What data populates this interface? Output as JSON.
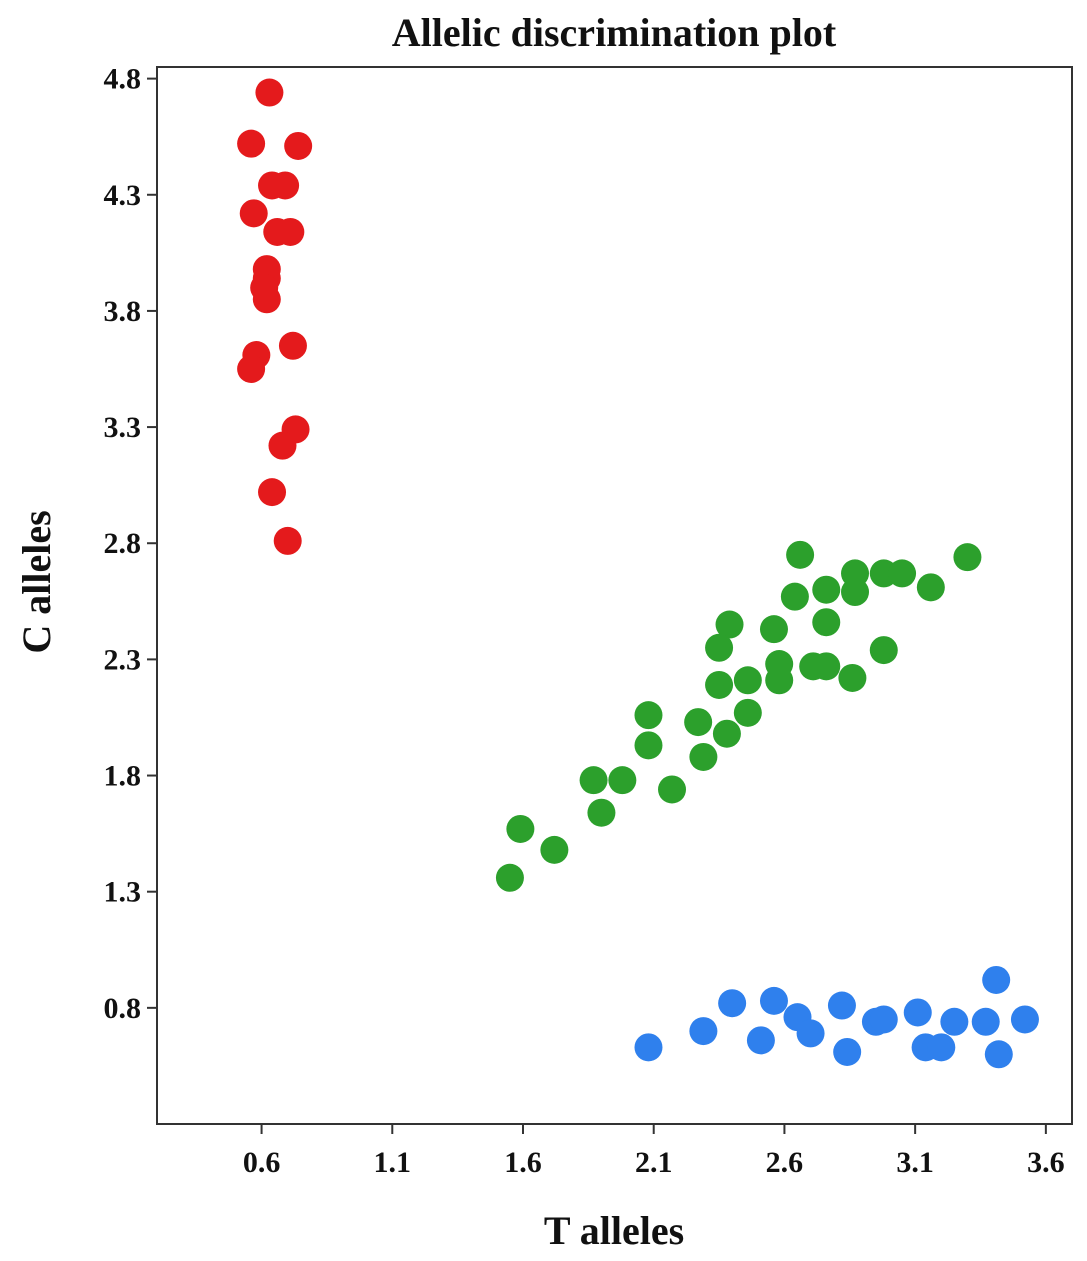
{
  "chart_data": {
    "type": "scatter",
    "title": "Allelic discrimination plot",
    "xlabel": "T alleles",
    "ylabel": "C alleles",
    "xlim": [
      0.2,
      3.7
    ],
    "ylim": [
      0.3,
      4.85
    ],
    "xticks": [
      "0.6",
      "1.1",
      "1.6",
      "2.1",
      "2.6",
      "3.1",
      "3.6"
    ],
    "yticks": [
      "0.8",
      "1.3",
      "1.8",
      "2.3",
      "2.8",
      "3.3",
      "3.8",
      "4.3",
      "4.8"
    ],
    "grid": false,
    "series": [
      {
        "color": "#e41a1c",
        "points": [
          [
            0.63,
            4.74
          ],
          [
            0.56,
            4.52
          ],
          [
            0.74,
            4.51
          ],
          [
            0.64,
            4.34
          ],
          [
            0.69,
            4.34
          ],
          [
            0.57,
            4.22
          ],
          [
            0.66,
            4.14
          ],
          [
            0.71,
            4.14
          ],
          [
            0.62,
            3.98
          ],
          [
            0.62,
            3.94
          ],
          [
            0.61,
            3.9
          ],
          [
            0.62,
            3.85
          ],
          [
            0.72,
            3.65
          ],
          [
            0.58,
            3.61
          ],
          [
            0.56,
            3.55
          ],
          [
            0.73,
            3.29
          ],
          [
            0.68,
            3.22
          ],
          [
            0.64,
            3.02
          ],
          [
            0.7,
            2.81
          ]
        ]
      },
      {
        "color": "#2ca02c",
        "points": [
          [
            2.66,
            2.75
          ],
          [
            3.3,
            2.74
          ],
          [
            2.87,
            2.67
          ],
          [
            2.98,
            2.67
          ],
          [
            3.05,
            2.67
          ],
          [
            3.16,
            2.61
          ],
          [
            2.76,
            2.6
          ],
          [
            2.87,
            2.59
          ],
          [
            2.64,
            2.57
          ],
          [
            2.76,
            2.46
          ],
          [
            2.39,
            2.45
          ],
          [
            2.56,
            2.43
          ],
          [
            2.35,
            2.35
          ],
          [
            2.98,
            2.34
          ],
          [
            2.58,
            2.28
          ],
          [
            2.71,
            2.27
          ],
          [
            2.76,
            2.27
          ],
          [
            2.46,
            2.21
          ],
          [
            2.58,
            2.21
          ],
          [
            2.86,
            2.22
          ],
          [
            2.35,
            2.19
          ],
          [
            2.08,
            2.06
          ],
          [
            2.46,
            2.07
          ],
          [
            2.27,
            2.03
          ],
          [
            2.38,
            1.98
          ],
          [
            2.08,
            1.93
          ],
          [
            2.29,
            1.88
          ],
          [
            1.87,
            1.78
          ],
          [
            1.98,
            1.78
          ],
          [
            2.17,
            1.74
          ],
          [
            1.9,
            1.64
          ],
          [
            1.59,
            1.57
          ],
          [
            1.72,
            1.48
          ],
          [
            1.55,
            1.36
          ]
        ]
      },
      {
        "color": "#2f80ed",
        "points": [
          [
            3.41,
            0.92
          ],
          [
            2.4,
            0.82
          ],
          [
            2.56,
            0.83
          ],
          [
            2.82,
            0.81
          ],
          [
            3.11,
            0.78
          ],
          [
            2.65,
            0.76
          ],
          [
            2.95,
            0.74
          ],
          [
            2.98,
            0.75
          ],
          [
            3.25,
            0.74
          ],
          [
            3.37,
            0.74
          ],
          [
            3.52,
            0.75
          ],
          [
            2.29,
            0.7
          ],
          [
            2.7,
            0.69
          ],
          [
            2.51,
            0.66
          ],
          [
            2.08,
            0.63
          ],
          [
            2.84,
            0.61
          ],
          [
            3.14,
            0.63
          ],
          [
            3.2,
            0.63
          ],
          [
            3.42,
            0.6
          ]
        ]
      }
    ]
  }
}
